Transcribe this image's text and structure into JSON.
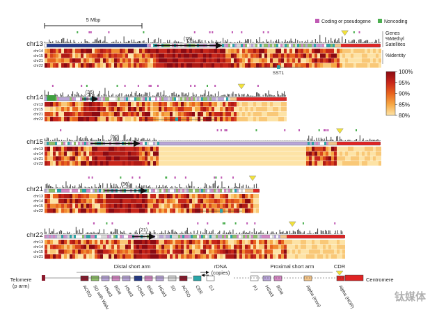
{
  "scale_bar": {
    "label": "5 Mbp"
  },
  "legend_top": {
    "coding": "Coding or pseudogene",
    "noncoding": "Noncoding",
    "coding_color": "#c05ab4",
    "noncoding_color": "#4caf50"
  },
  "track_labels": {
    "genes": "Genes",
    "methyl": "%Methyl",
    "satellites": "Satellites",
    "identity": "%Identity"
  },
  "colorbar": {
    "ticks": [
      "100%",
      "95%",
      "90%",
      "85%",
      "80%"
    ],
    "colors": [
      "#8b0a12",
      "#c8261a",
      "#e8641e",
      "#f6a845",
      "#fde3a6"
    ]
  },
  "panels": [
    {
      "name": "chr13",
      "rows": [
        "chr14",
        "chr15",
        "chr21",
        "chr22"
      ],
      "copies": "(76)",
      "annotation": "SST1"
    },
    {
      "name": "chr14",
      "rows": [
        "chr13",
        "chr15",
        "chr21",
        "chr22"
      ],
      "copies": "(36)",
      "annotation": ""
    },
    {
      "name": "chr15",
      "rows": [
        "chr13",
        "chr14",
        "chr21",
        "chr22"
      ],
      "copies": "(50)",
      "annotation": ""
    },
    {
      "name": "chr21",
      "rows": [
        "chr13",
        "chr14",
        "chr15",
        "chr22"
      ],
      "copies": "(56)",
      "annotation": ""
    },
    {
      "name": "chr22",
      "rows": [
        "chr13",
        "chr14",
        "chr15",
        "chr21"
      ],
      "copies": "(21)",
      "annotation": ""
    }
  ],
  "bottom_legend": {
    "telomere": "Telomere\n(p arm)",
    "distal": "Distal short arm",
    "rdna": "rDNA\n(copies)",
    "proximal": "Proximal short arm",
    "cdr": "CDR",
    "centromere": "Centromere",
    "items": [
      {
        "label": "ACRO",
        "color": "#8b1a2c"
      },
      {
        "label": "SD with Walu",
        "color": "#8fbf6a"
      },
      {
        "label": "HSat3",
        "color": "#b9a6d8"
      },
      {
        "label": "BSat",
        "color": "#d489c4"
      },
      {
        "label": "HSat3",
        "color": "#b9a6d8"
      },
      {
        "label": "HSat1",
        "color": "#243a8c"
      },
      {
        "label": "BSat",
        "color": "#d489c4"
      },
      {
        "label": "HSat3",
        "color": "#b9a6d8"
      },
      {
        "label": "SD",
        "color": "#d9d9d9"
      },
      {
        "label": "ACRO",
        "color": "#8b1a2c"
      },
      {
        "label": "CER",
        "color": "#2ba6a8"
      },
      {
        "label": "DJ",
        "color": "#ffffff"
      },
      {
        "label": "PJ",
        "color": "#ffffff"
      },
      {
        "label": "HSat3",
        "color": "#b9a6d8"
      },
      {
        "label": "BSat",
        "color": "#d489c4"
      },
      {
        "label": "Alpha (mon)",
        "color": "#f2c48a"
      },
      {
        "label": "Alpha (HOR)",
        "color": "#e02424"
      }
    ]
  },
  "watermark": "钛媒体"
}
